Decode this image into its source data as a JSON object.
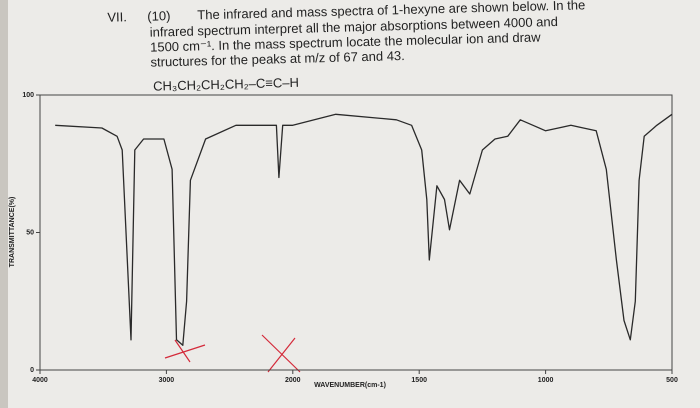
{
  "question": {
    "number": "VII.",
    "points": "(10)",
    "lines": [
      "The infrared and mass spectra of 1-hexyne are shown below. In the",
      "infrared spectrum interpret all the major absorptions between 4000 and",
      "1500 cm⁻¹. In the mass spectrum locate the molecular ion and draw",
      "structures for the peaks at m/z of 67 and 43."
    ],
    "formula": "CH₃CH₂CH₂CH₂–C≡C–H"
  },
  "chart_data": {
    "type": "line",
    "x_label": "WAVENUMBER(cm-1)",
    "y_label": "TRANSMITTANCE(%)",
    "x": [
      3880,
      3510,
      3390,
      3350,
      3280,
      3250,
      3180,
      3020,
      2955,
      2920,
      2870,
      2840,
      2810,
      2690,
      2450,
      2200,
      2130,
      2110,
      2080,
      2000,
      1830,
      1590,
      1530,
      1490,
      1470,
      1460,
      1430,
      1400,
      1380,
      1340,
      1300,
      1250,
      1200,
      1150,
      1100,
      1050,
      1000,
      900,
      800,
      760,
      720,
      690,
      665,
      645,
      630,
      610,
      560,
      500
    ],
    "values": [
      89,
      88,
      85,
      80,
      11,
      80,
      84,
      84,
      73,
      11,
      9,
      25,
      69,
      84,
      89,
      89,
      89,
      70,
      89,
      89,
      93,
      91,
      89,
      80,
      62,
      40,
      67,
      62,
      51,
      69,
      64,
      80,
      84,
      85,
      91,
      89,
      87,
      89,
      87,
      73,
      40,
      18,
      11,
      25,
      69,
      85,
      89,
      93
    ],
    "color": "#2a2a2a",
    "xlim": [
      4000,
      500
    ],
    "ylim": [
      0,
      100
    ],
    "xticks": [
      4000,
      3000,
      2000,
      1500,
      1000,
      500
    ],
    "yticks": [
      0,
      50,
      100
    ]
  }
}
